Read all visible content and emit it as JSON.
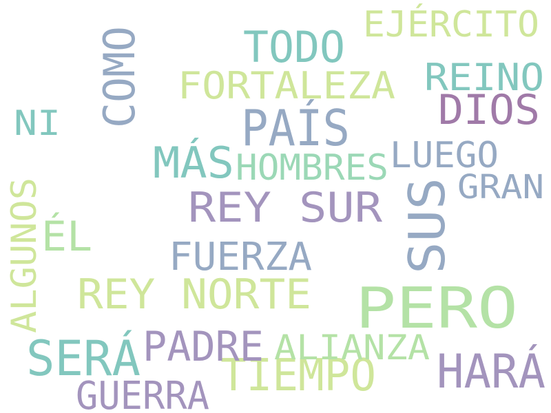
{
  "word_cloud": {
    "palette": {
      "teal": "#82c7be",
      "blue_gray": "#96a9c3",
      "purple": "#a394bd",
      "plum": "#a07aa8",
      "green": "#b4e2a6",
      "light_green": "#cfe69a",
      "mint": "#9bd8b6"
    },
    "words": [
      {
        "text": "PERO"
      },
      {
        "text": "SUS"
      },
      {
        "text": "REY SUR"
      },
      {
        "text": "HARÁ"
      },
      {
        "text": "SERÁ"
      },
      {
        "text": "PAÍS"
      },
      {
        "text": "MÁS"
      },
      {
        "text": "TIEMPO"
      },
      {
        "text": "DIOS"
      },
      {
        "text": "TODO"
      },
      {
        "text": "COMO"
      },
      {
        "text": "REY NORTE"
      },
      {
        "text": "FUERZA"
      },
      {
        "text": "PADRE"
      },
      {
        "text": "GUERRA"
      },
      {
        "text": "ALIANZA"
      },
      {
        "text": "FORTALEZA"
      },
      {
        "text": "REINO"
      },
      {
        "text": "ÉL"
      },
      {
        "text": "EJÉRCITO"
      },
      {
        "text": "GRAN"
      },
      {
        "text": "LUEGO"
      },
      {
        "text": "ALGUNOS"
      },
      {
        "text": "HOMBRES"
      },
      {
        "text": "NI"
      }
    ]
  }
}
